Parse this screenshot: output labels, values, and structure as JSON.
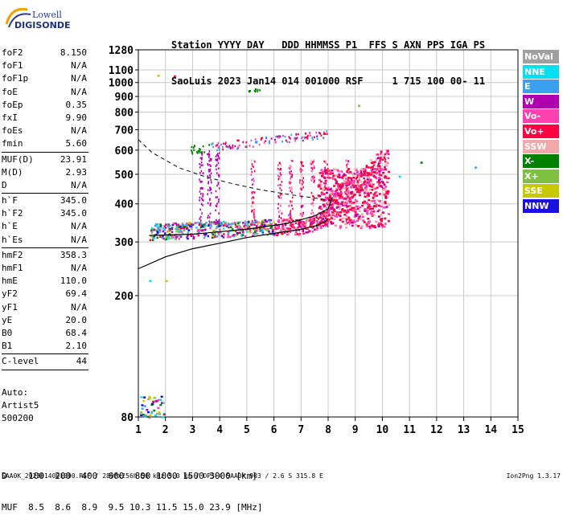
{
  "logo": {
    "line1": "Lowell",
    "line2": "DIGISONDE"
  },
  "header": {
    "line1": "Station YYYY DAY   DDD HHMMSS P1  FFS S AXN PPS IGA PS",
    "line2": "SaoLuis 2023 Jan14 014 001000 RSF     1 715 100 00- 11"
  },
  "params": [
    {
      "label": "foF2",
      "value": "8.150"
    },
    {
      "label": "foF1",
      "value": "N/A"
    },
    {
      "label": "foF1p",
      "value": "N/A"
    },
    {
      "label": "foE",
      "value": "N/A"
    },
    {
      "label": "foEp",
      "value": "0.35"
    },
    {
      "label": "fxI",
      "value": "9.90"
    },
    {
      "label": "foEs",
      "value": "N/A"
    },
    {
      "label": "fmin",
      "value": "5.60"
    },
    {
      "sep": true
    },
    {
      "label": "MUF(D)",
      "value": "23.91"
    },
    {
      "label": "M(D)",
      "value": "2.93"
    },
    {
      "label": "D",
      "value": "N/A"
    },
    {
      "sep": true
    },
    {
      "label": "h`F",
      "value": "345.0"
    },
    {
      "label": "h`F2",
      "value": "345.0"
    },
    {
      "label": "h`E",
      "value": "N/A"
    },
    {
      "label": "h`Es",
      "value": "N/A"
    },
    {
      "sep": true
    },
    {
      "label": "hmF2",
      "value": "358.3"
    },
    {
      "label": "hmF1",
      "value": "N/A"
    },
    {
      "label": "hmE",
      "value": "110.0"
    },
    {
      "label": "yF2",
      "value": "69.4"
    },
    {
      "label": "yF1",
      "value": "N/A"
    },
    {
      "label": "yE",
      "value": "20.0"
    },
    {
      "label": "B0",
      "value": "68.4"
    },
    {
      "label": "B1",
      "value": "2.10"
    },
    {
      "sep": true
    },
    {
      "label": "C-level",
      "value": "44"
    },
    {
      "sep": true
    }
  ],
  "auto": {
    "line1": "Auto:",
    "line2": "Artist5",
    "line3": "500200"
  },
  "legend": [
    {
      "label": "NoVal",
      "color": "#a0a0a0"
    },
    {
      "label": "NNE",
      "color": "#00e0f0"
    },
    {
      "label": "E",
      "color": "#3aa0f0"
    },
    {
      "label": "W",
      "color": "#b000b0"
    },
    {
      "label": "Vo-",
      "color": "#ff40b0"
    },
    {
      "label": "Vo+",
      "color": "#ff0040"
    },
    {
      "label": "SSW",
      "color": "#f0a8a8"
    },
    {
      "label": "X-",
      "color": "#008000"
    },
    {
      "label": "X+",
      "color": "#80c040"
    },
    {
      "label": "SSE",
      "color": "#c8c800"
    },
    {
      "label": "NNW",
      "color": "#1a10e0"
    }
  ],
  "bottom": {
    "line1": "D    100  200  400  600  800 1000 1500 3000 [km]",
    "line2": "MUF  8.5  8.6  8.9  9.5 10.3 11.5 15.0 23.9 [MHz]"
  },
  "footer": {
    "left": "SAA0K_2023014001000.RSF / 280fx256h 50 kHz 5.0 km / DPS-4 SAA0K 903 / 2.6 S 315.8 E",
    "right": "Ion2Png 1.3.17"
  },
  "chart_data": {
    "type": "scatter",
    "xlim": [
      1,
      15
    ],
    "ylim": [
      80,
      1280
    ],
    "ylog": true,
    "xticks": [
      1,
      2,
      3,
      4,
      5,
      6,
      7,
      8,
      9,
      10,
      11,
      12,
      13,
      14,
      15
    ],
    "yticks": [
      80,
      200,
      300,
      400,
      500,
      600,
      700,
      800,
      900,
      1000,
      1100,
      1280
    ],
    "grid": true,
    "traces": [
      {
        "desc": "E-layer echoes",
        "color_key": "mix",
        "x": [
          1.05,
          1.95
        ],
        "y": [
          80,
          95
        ],
        "density": 40
      },
      {
        "desc": "F-layer O trace",
        "x": [
          1.4,
          10.2
        ],
        "y": [
          310,
          430
        ],
        "density": 700
      },
      {
        "desc": "second hop",
        "x": [
          2.9,
          8.0
        ],
        "y": [
          600,
          720
        ],
        "density": 90
      },
      {
        "desc": "third hop",
        "x": [
          5.0,
          5.4
        ],
        "y": [
          940,
          960
        ],
        "density": 8
      }
    ],
    "profile_solid": [
      [
        1.0,
        245
      ],
      [
        2.0,
        268
      ],
      [
        3.0,
        285
      ],
      [
        4.0,
        297
      ],
      [
        5.0,
        310
      ],
      [
        6.0,
        320
      ],
      [
        7.0,
        330
      ],
      [
        7.6,
        340
      ],
      [
        7.9,
        350
      ],
      [
        8.0,
        358
      ]
    ],
    "profile_trace": [
      [
        1.4,
        315
      ],
      [
        3,
        318
      ],
      [
        5,
        330
      ],
      [
        6.5,
        345
      ],
      [
        7.5,
        365
      ],
      [
        8,
        385
      ],
      [
        8.15,
        420
      ]
    ],
    "profile_dashed": [
      [
        1.0,
        650
      ],
      [
        1.5,
        590
      ],
      [
        2.5,
        525
      ],
      [
        3.5,
        490
      ],
      [
        4.5,
        465
      ],
      [
        5.5,
        445
      ],
      [
        6.5,
        430
      ],
      [
        7.5,
        418
      ],
      [
        8.15,
        410
      ]
    ]
  }
}
